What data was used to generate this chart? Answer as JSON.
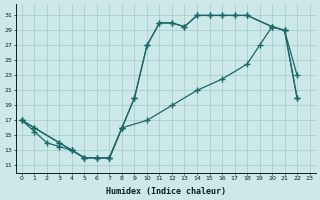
{
  "xlabel": "Humidex (Indice chaleur)",
  "background_color": "#cce8e8",
  "grid_color": "#aacece",
  "line_color": "#1a6868",
  "xlim": [
    -0.5,
    23.5
  ],
  "ylim": [
    10,
    32.5
  ],
  "xticks": [
    0,
    1,
    2,
    3,
    4,
    5,
    6,
    7,
    8,
    9,
    10,
    11,
    12,
    13,
    14,
    15,
    16,
    17,
    18,
    19,
    20,
    21,
    22,
    23
  ],
  "yticks": [
    11,
    13,
    15,
    17,
    19,
    21,
    23,
    25,
    27,
    29,
    31
  ],
  "line1_x": [
    0,
    1,
    3,
    4,
    5,
    6,
    7,
    8,
    9,
    10,
    11,
    12,
    13,
    14,
    15,
    16,
    17,
    18,
    20,
    21,
    22
  ],
  "line1_y": [
    17,
    16,
    14,
    13,
    12,
    12,
    12,
    16,
    20,
    27,
    30,
    30,
    29.5,
    31,
    31,
    31,
    31,
    31,
    29.5,
    29,
    23
  ],
  "line2_x": [
    0,
    1,
    3,
    4,
    5,
    6,
    7,
    8,
    9,
    10,
    11,
    12,
    13,
    14,
    15,
    16,
    17,
    18,
    20,
    21,
    22
  ],
  "line2_y": [
    17,
    16,
    14,
    13,
    12,
    12,
    12,
    16,
    20,
    27,
    30,
    30,
    29.5,
    31,
    31,
    31,
    31,
    31,
    29.5,
    29,
    20
  ],
  "line3_x": [
    0,
    1,
    2,
    3,
    4,
    5,
    6,
    7,
    8,
    10,
    12,
    14,
    16,
    18,
    19,
    20,
    21,
    22
  ],
  "line3_y": [
    17,
    15.5,
    14,
    13.5,
    13,
    12,
    12,
    12,
    16,
    17,
    19,
    21,
    22.5,
    24.5,
    27,
    29.5,
    29,
    20
  ]
}
